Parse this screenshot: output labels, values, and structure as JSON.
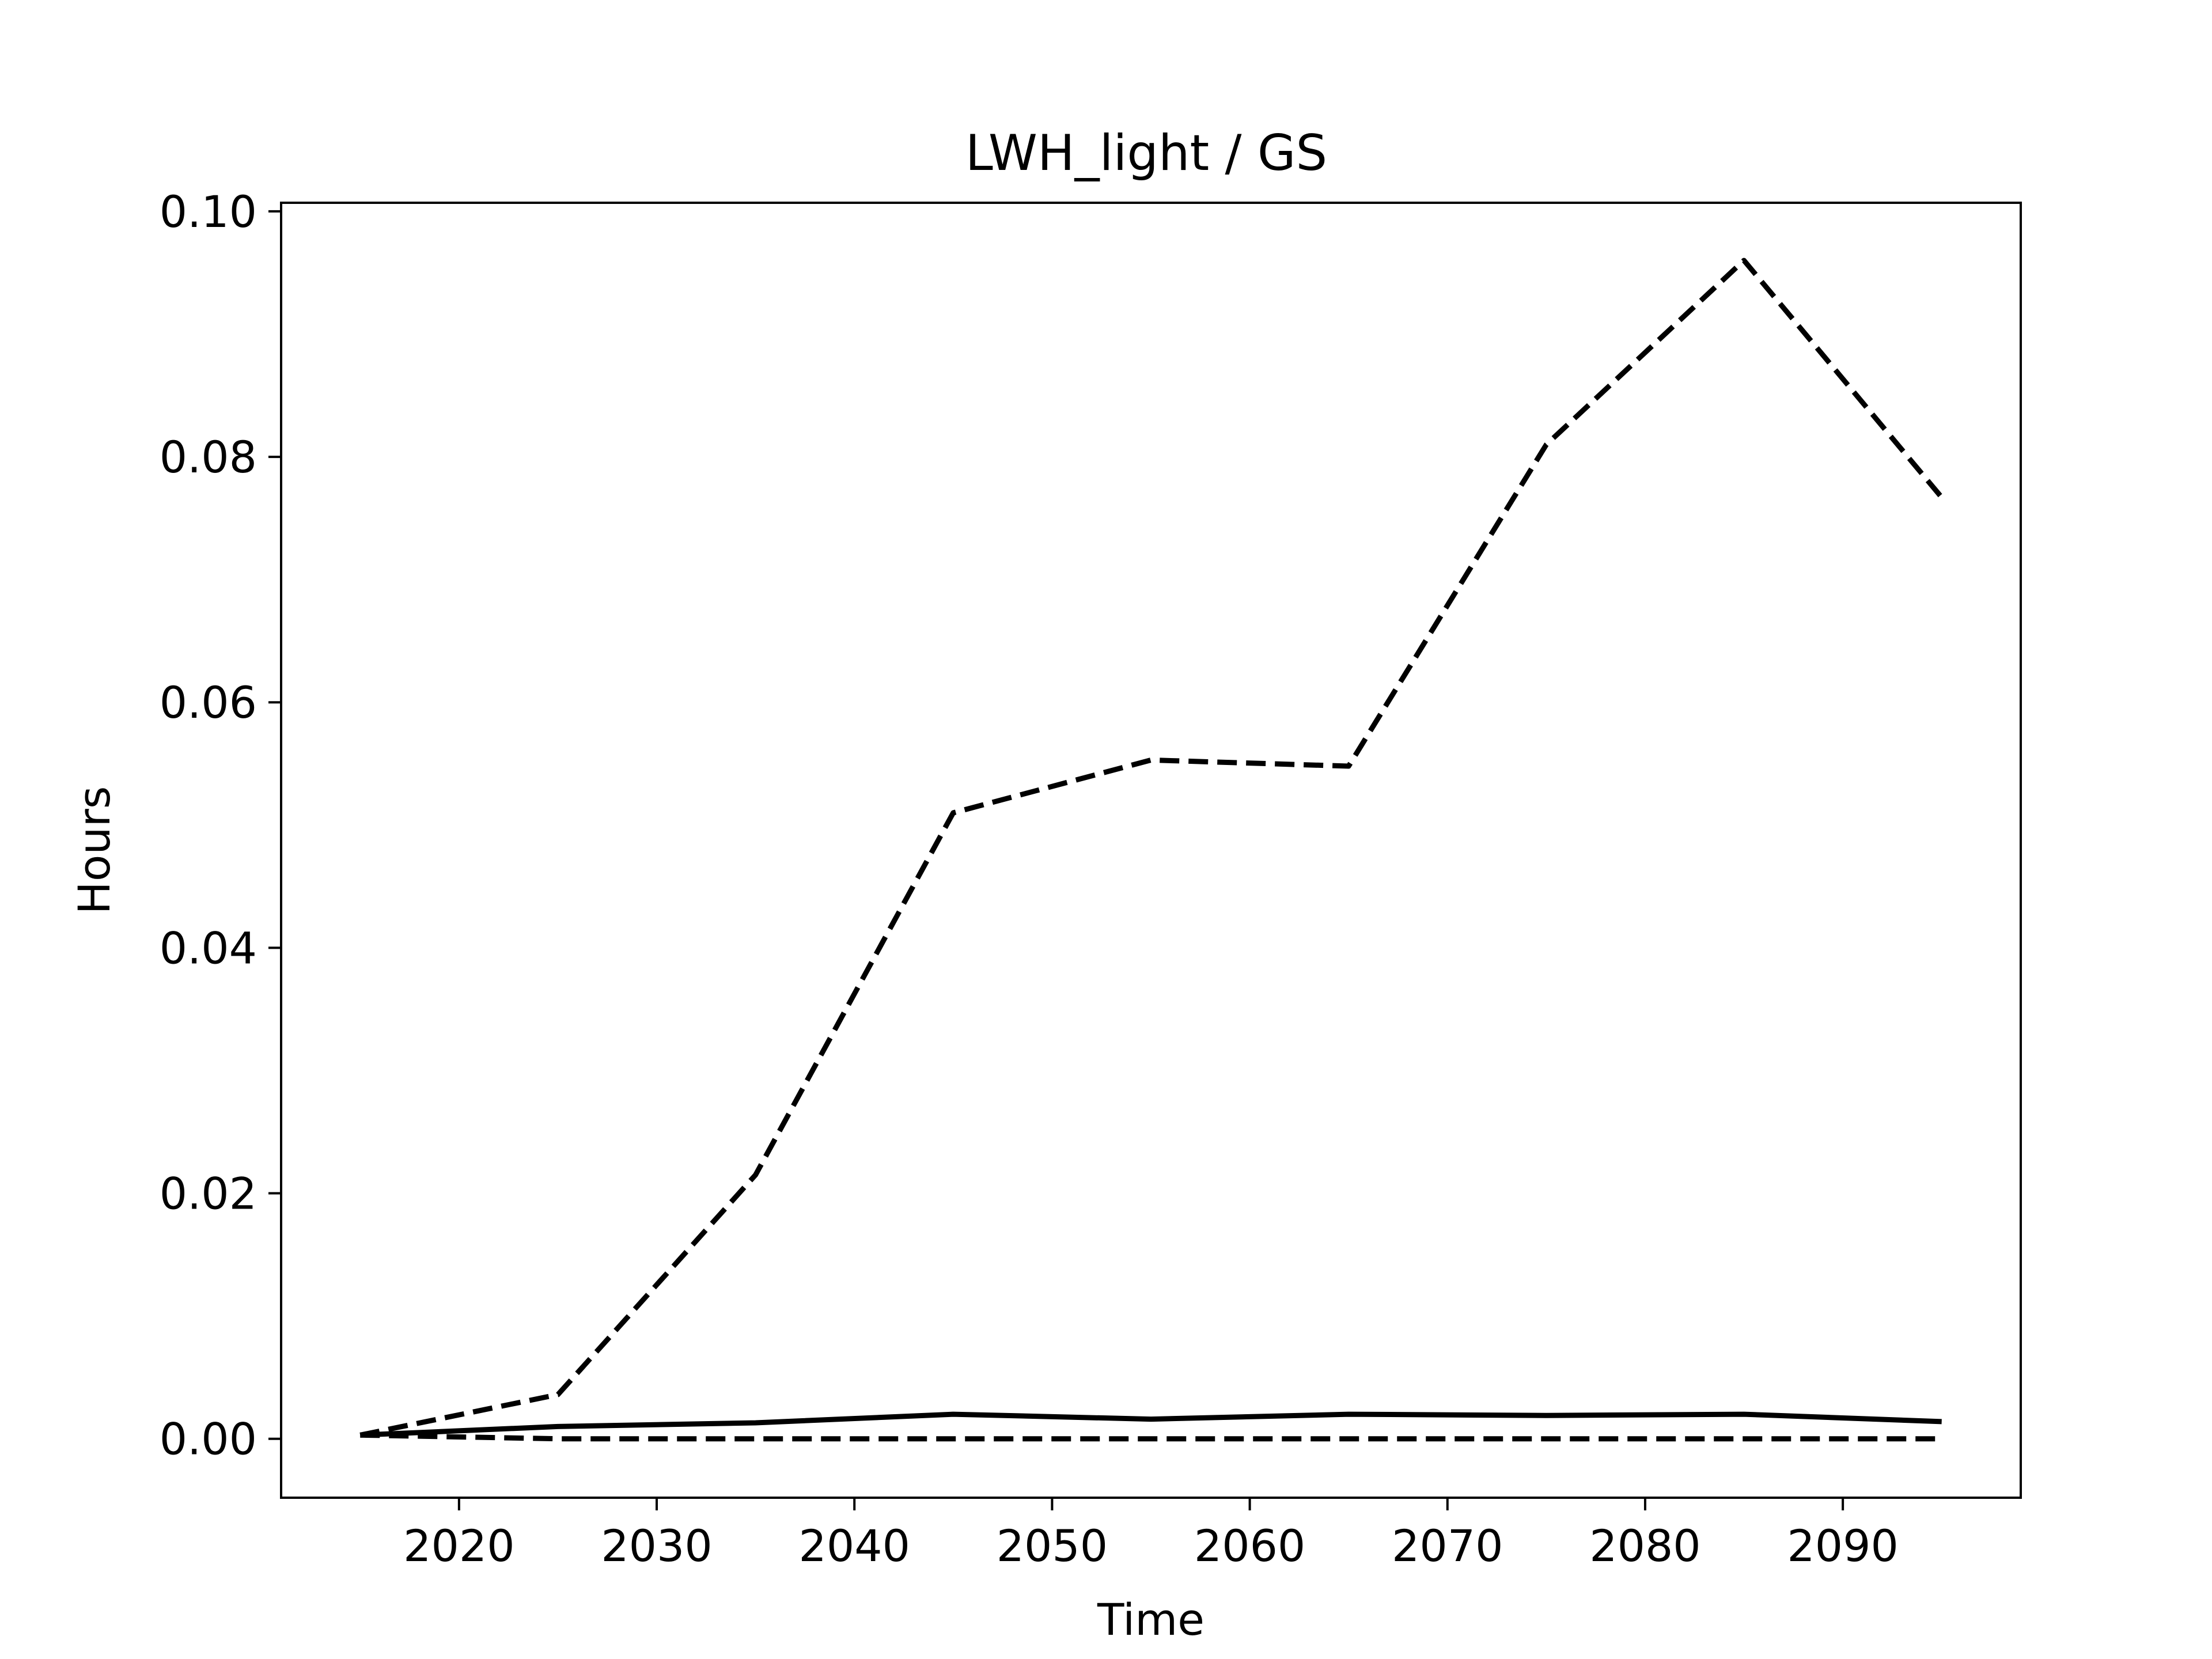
{
  "chart_data": {
    "type": "line",
    "title": "LWH_light / GS",
    "xlabel": "Time",
    "ylabel": "Hours",
    "xlim": [
      2011,
      2099
    ],
    "ylim": [
      -0.0048,
      0.1007
    ],
    "x_ticks": [
      2020,
      2030,
      2040,
      2050,
      2060,
      2070,
      2080,
      2090
    ],
    "y_ticks": [
      0.0,
      0.02,
      0.04,
      0.06,
      0.08,
      0.1
    ],
    "y_tick_labels": [
      "0.00",
      "0.02",
      "0.04",
      "0.06",
      "0.08",
      "0.10"
    ],
    "grid": false,
    "legend": false,
    "x": [
      2015,
      2025,
      2035,
      2045,
      2055,
      2065,
      2075,
      2085,
      2095
    ],
    "series": [
      {
        "style": "dashed",
        "color": "#000000",
        "values": [
          0.0003,
          0.0036,
          0.0215,
          0.051,
          0.0553,
          0.0548,
          0.081,
          0.096,
          0.0767
        ]
      },
      {
        "style": "solid",
        "color": "#000000",
        "values": [
          0.0003,
          0.001,
          0.0013,
          0.002,
          0.0016,
          0.002,
          0.0019,
          0.002,
          0.0014
        ]
      },
      {
        "style": "dashed",
        "color": "#000000",
        "values": [
          0.0003,
          0.0,
          0.0,
          0.0,
          0.0,
          0.0,
          0.0,
          0.0,
          0.0
        ]
      }
    ]
  }
}
